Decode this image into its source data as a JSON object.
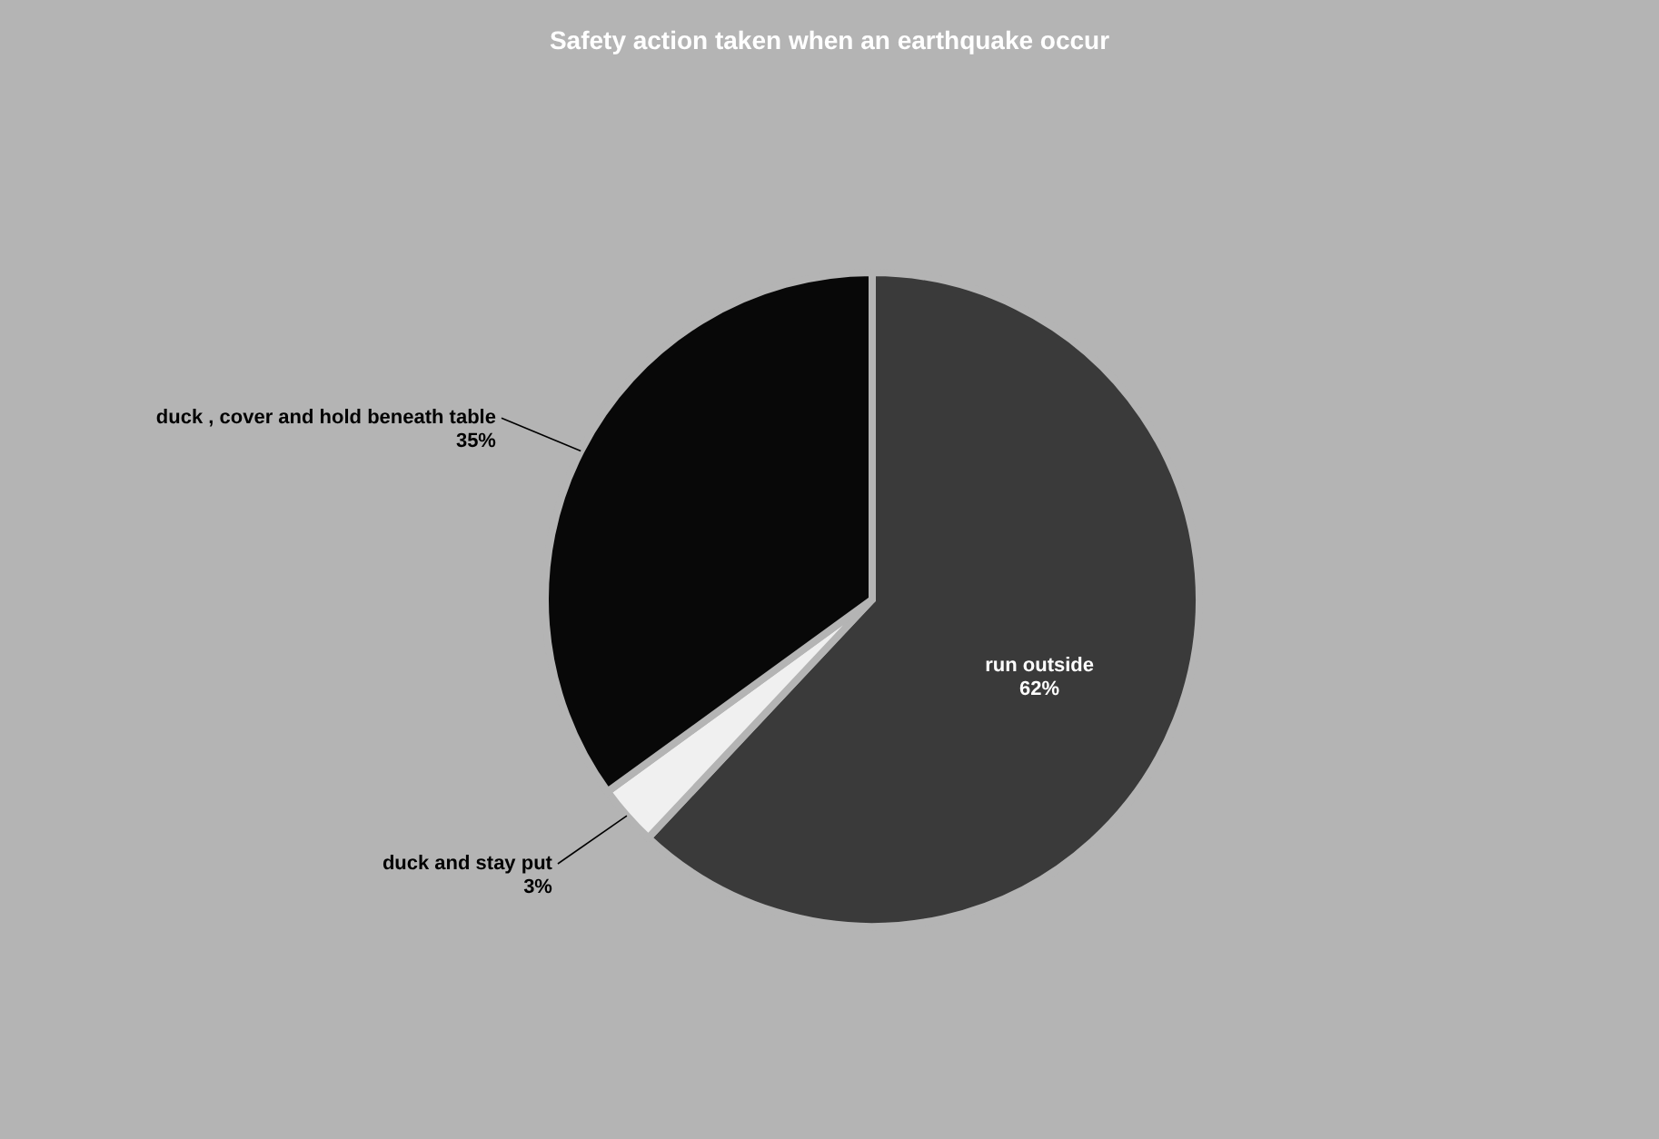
{
  "chart_data": {
    "type": "pie",
    "title": "Safety action taken when an earthquake occur",
    "categories": [
      "run outside",
      "duck and stay put",
      "duck , cover and hold beneath table"
    ],
    "values": [
      62,
      3,
      35
    ],
    "value_labels": [
      "62%",
      "3%",
      "35%"
    ],
    "colors": [
      "#3a3a3a",
      "#f0f0f0",
      "#080808"
    ]
  }
}
